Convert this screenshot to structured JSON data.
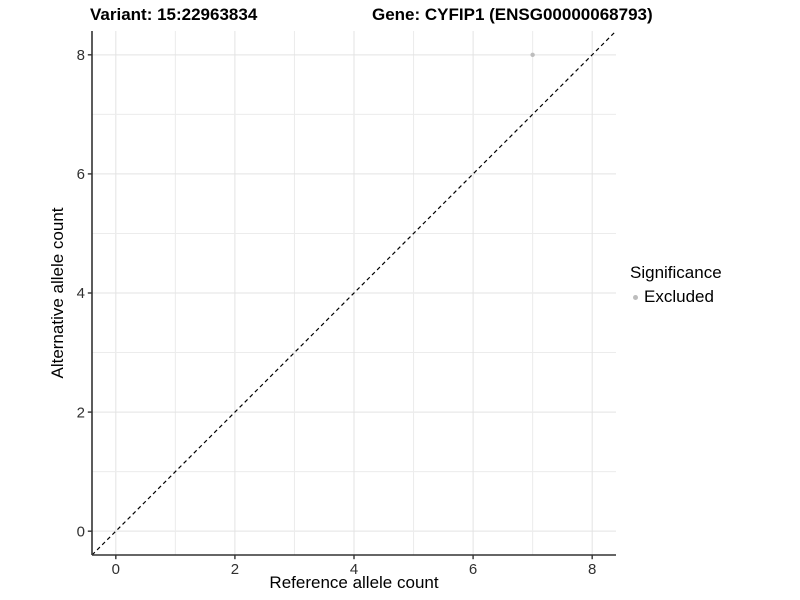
{
  "chart_data": {
    "type": "scatter",
    "title_left": "Variant: 15:22963834",
    "title_right": "Gene: CYFIP1 (ENSG00000068793)",
    "xlabel": "Reference allele count",
    "ylabel": "Alternative allele count",
    "xlim": [
      -0.4,
      8.4
    ],
    "ylim": [
      -0.4,
      8.4
    ],
    "xticks": [
      0,
      2,
      4,
      6,
      8
    ],
    "yticks": [
      0,
      2,
      4,
      6,
      8
    ],
    "grid": {
      "interval": 1,
      "on": true,
      "major_color": "#e3e3e3",
      "minor_color": "#ececec"
    },
    "points": [
      {
        "x": 7,
        "y": 8,
        "series": "Excluded",
        "color": "#bdbdbd"
      }
    ],
    "reference_line": {
      "slope": 1,
      "intercept": 0,
      "style": "dashed",
      "color": "#000000"
    },
    "legend": {
      "title": "Significance",
      "position": "right",
      "entries": [
        {
          "label": "Excluded",
          "color": "#bdbdbd",
          "marker": "dot"
        }
      ]
    },
    "axis_color": "#333333"
  }
}
